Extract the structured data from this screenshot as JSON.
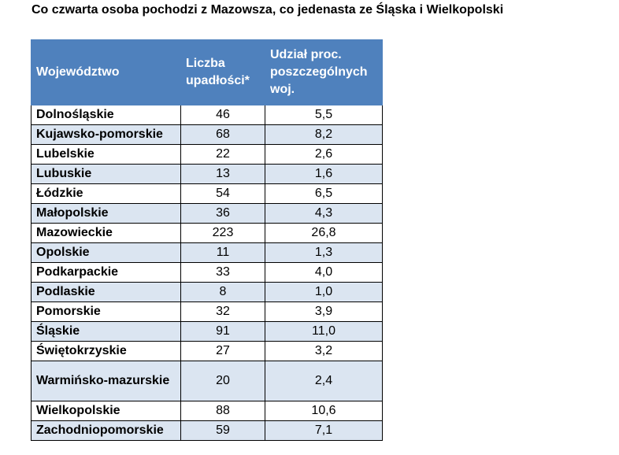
{
  "title": "Co czwarta osoba pochodzi z Mazowsza, co jedenasta ze Śląska i Wielkopolski",
  "table": {
    "headers": [
      "Województwo",
      "Liczba upadłości*",
      "Udział proc. poszczególnych woj."
    ],
    "rows": [
      [
        "Dolnośląskie",
        "46",
        "5,5"
      ],
      [
        "Kujawsko-pomorskie",
        "68",
        "8,2"
      ],
      [
        "Lubelskie",
        "22",
        "2,6"
      ],
      [
        "Lubuskie",
        "13",
        "1,6"
      ],
      [
        "Łódzkie",
        "54",
        "6,5"
      ],
      [
        "Małopolskie",
        "36",
        "4,3"
      ],
      [
        "Mazowieckie",
        "223",
        "26,8"
      ],
      [
        "Opolskie",
        "11",
        "1,3"
      ],
      [
        "Podkarpackie",
        "33",
        "4,0"
      ],
      [
        "Podlaskie",
        "8",
        "1,0"
      ],
      [
        "Pomorskie",
        "32",
        "3,9"
      ],
      [
        "Śląskie",
        "91",
        "11,0"
      ],
      [
        "Świętokrzyskie",
        "27",
        "3,2"
      ],
      [
        "Warmińsko-mazurskie",
        "20",
        "2,4"
      ],
      [
        "Wielkopolskie",
        "88",
        "10,6"
      ],
      [
        "Zachodniopomorskie",
        "59",
        "7,1"
      ]
    ]
  },
  "colors": {
    "header_bg": "#4f81bd",
    "header_text": "#ffffff",
    "alt_row_bg": "#dbe5f1",
    "row_bg": "#ffffff"
  }
}
